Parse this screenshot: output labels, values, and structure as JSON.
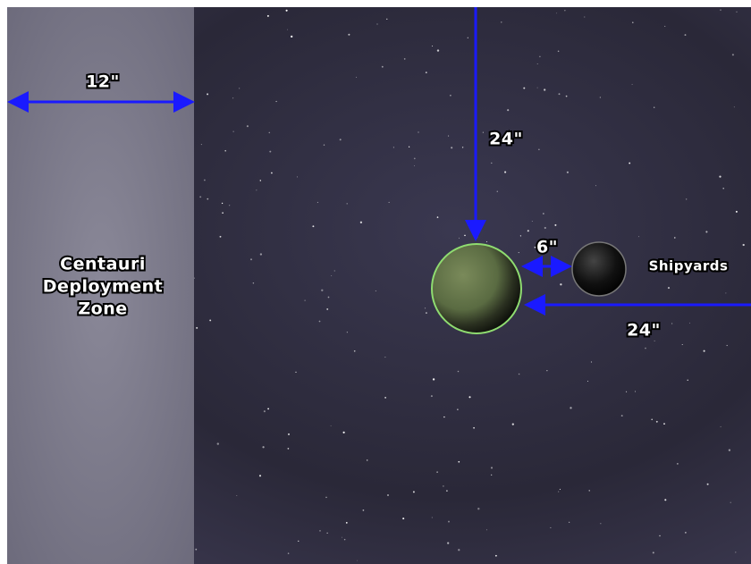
{
  "map": {
    "zone": {
      "lines": [
        "Centauri",
        "Deployment",
        "Zone"
      ]
    },
    "measures": {
      "zone_width": "12\"",
      "planet_to_top": "24\"",
      "planet_to_shipyards": "6\"",
      "planet_to_right": "24\""
    },
    "objects": {
      "shipyards": "Shipyards"
    }
  }
}
